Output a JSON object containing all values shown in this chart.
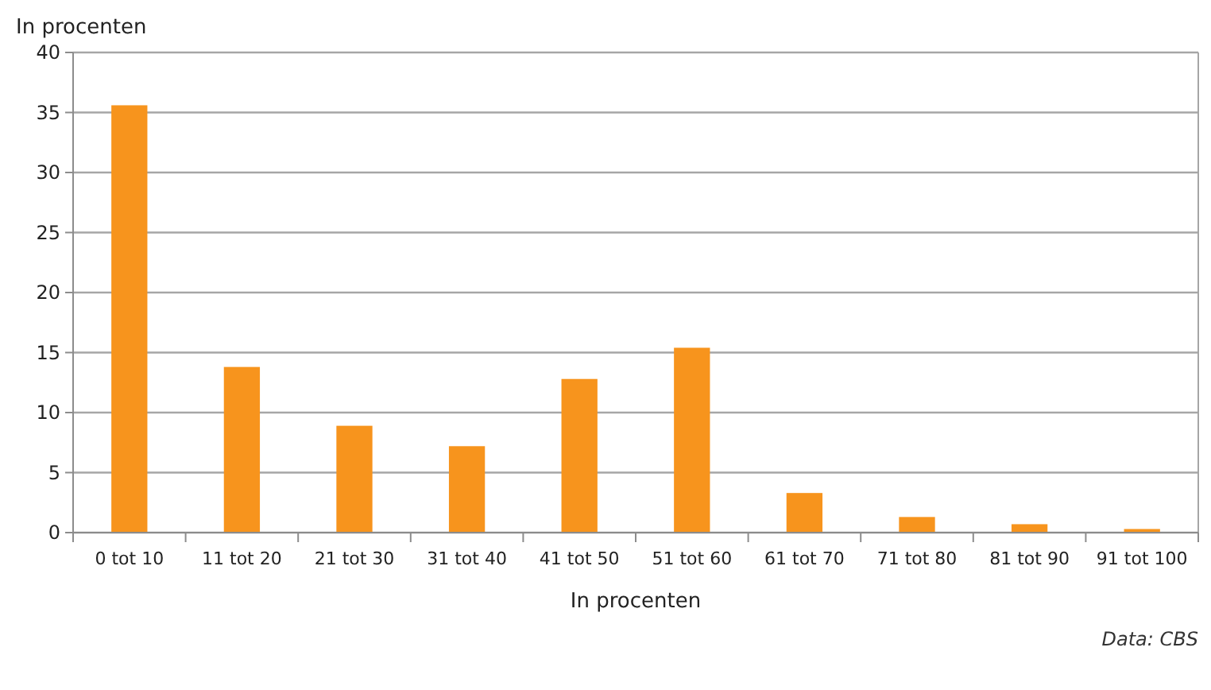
{
  "chart_data": {
    "type": "bar",
    "ylabel": "In procenten",
    "xlabel": "In procenten",
    "categories": [
      "0 tot 10",
      "11 tot 20",
      "21 tot 30",
      "31 tot 40",
      "41 tot 50",
      "51 tot 60",
      "61 tot 70",
      "71 tot 80",
      "81 tot 90",
      "91 tot 100"
    ],
    "values": [
      35.6,
      13.8,
      8.9,
      7.2,
      12.8,
      15.4,
      3.3,
      1.3,
      0.7,
      0.3
    ],
    "color": "#f7941d",
    "ylim": [
      0,
      40
    ],
    "yticks": [
      0,
      5,
      10,
      15,
      20,
      25,
      30,
      35,
      40
    ],
    "grid": "y",
    "annotations": [
      "Data: CBS"
    ]
  }
}
